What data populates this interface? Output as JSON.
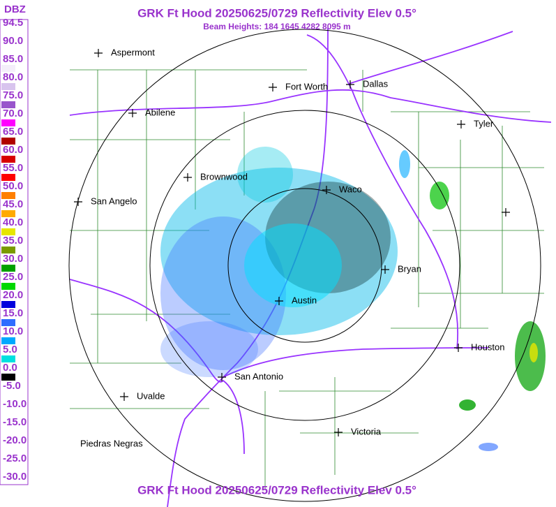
{
  "header": {
    "title": "GRK Ft Hood 20250625/0729 Reflectivity Elev 0.5°",
    "subtitle": "Beam Heights: 184 1645 4282 8095 m"
  },
  "footer": {
    "title": "GRK Ft Hood 20250625/0729 Reflectivity Elev 0.5°"
  },
  "legend": {
    "unit": "DBZ",
    "labels": [
      "94.5",
      "90.0",
      "85.0",
      "80.0",
      "75.0",
      "70.0",
      "65.0",
      "60.0",
      "55.0",
      "50.0",
      "45.0",
      "40.0",
      "35.0",
      "30.0",
      "25.0",
      "20.0",
      "15.0",
      "10.0",
      "5.0",
      "0.0",
      "-5.0",
      "-10.0",
      "-15.0",
      "-20.0",
      "-25.0",
      "-30.0"
    ],
    "colors": [
      "#ffffff",
      "#ffffff",
      "#f4eefa",
      "#d8c4ee",
      "#9955cc",
      "#ff00ff",
      "#b00000",
      "#d80000",
      "#ff0000",
      "#ff7f00",
      "#ffaa00",
      "#e6e600",
      "#7a9a00",
      "#00a000",
      "#00d800",
      "#0000dd",
      "#2f6cff",
      "#00a8ff",
      "#00e0e0",
      "#000000",
      "#ffffff",
      "#ffffff",
      "#ffffff",
      "#ffffff",
      "#ffffff"
    ]
  },
  "cities": [
    {
      "label": "Aspermont"
    },
    {
      "label": "Abilene"
    },
    {
      "label": "Fort Worth"
    },
    {
      "label": "Dallas"
    },
    {
      "label": "Tyler"
    },
    {
      "label": "Brownwood"
    },
    {
      "label": "Waco"
    },
    {
      "label": "San Angelo"
    },
    {
      "label": "Bryan"
    },
    {
      "label": "Austin"
    },
    {
      "label": "Houston"
    },
    {
      "label": "San Antonio"
    },
    {
      "label": "Uvalde"
    },
    {
      "label": "Victoria"
    },
    {
      "label": "Piedras Negras"
    }
  ]
}
